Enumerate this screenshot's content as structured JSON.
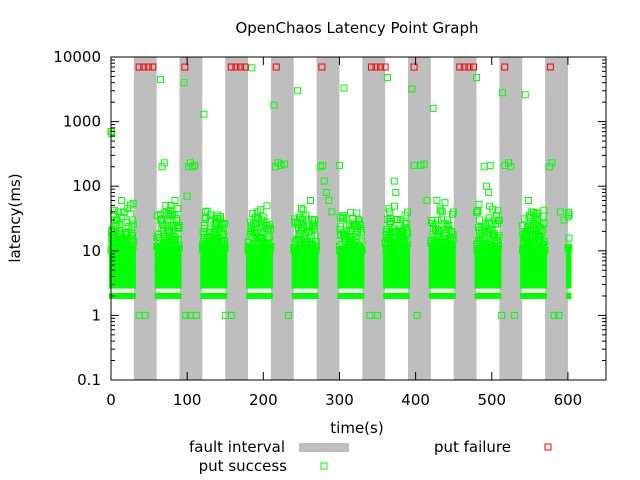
{
  "chart_data": {
    "type": "scatter",
    "title": "OpenChaos Latency Point Graph",
    "xlabel": "time(s)",
    "ylabel": "latency(ms)",
    "xlim": [
      0,
      650
    ],
    "ylim": [
      0.1,
      10000
    ],
    "yscale": "log",
    "grid": false,
    "legend_position": "bottom",
    "x_ticks": [
      0,
      100,
      200,
      300,
      400,
      500,
      600
    ],
    "x_tick_labels": [
      "0",
      "100",
      "200",
      "300",
      "400",
      "500",
      "600"
    ],
    "y_ticks": [
      0.1,
      1,
      10,
      100,
      1000,
      10000
    ],
    "y_tick_labels": [
      "0.1",
      "1",
      "10",
      "100",
      "1000",
      "10000"
    ],
    "fault_intervals": [
      [
        30,
        60
      ],
      [
        90,
        120
      ],
      [
        150,
        180
      ],
      [
        210,
        240
      ],
      [
        270,
        300
      ],
      [
        330,
        360
      ],
      [
        390,
        420
      ],
      [
        450,
        480
      ],
      [
        510,
        540
      ],
      [
        570,
        600
      ]
    ],
    "legend": [
      {
        "label": "fault interval",
        "color": "#bebebe",
        "marker": "rect"
      },
      {
        "label": "put success",
        "color": "#00ff00",
        "marker": "square"
      },
      {
        "label": "put failure",
        "color": "#ff0000",
        "marker": "square"
      }
    ],
    "series": [
      {
        "name": "put success",
        "color": "#00ff00",
        "bands": [
          [
            0,
            30
          ],
          [
            60,
            90
          ],
          [
            120,
            150
          ],
          [
            180,
            210
          ],
          [
            240,
            270
          ],
          [
            300,
            330
          ],
          [
            360,
            390
          ],
          [
            420,
            450
          ],
          [
            480,
            510
          ],
          [
            540,
            570
          ],
          [
            600,
            602
          ]
        ],
        "baseline_values": [
          2,
          3,
          4,
          5,
          6,
          8,
          10
        ],
        "points": [
          [
            0,
            700
          ],
          [
            1,
            650
          ],
          [
            3,
            15
          ],
          [
            6,
            25
          ],
          [
            10,
            40
          ],
          [
            14,
            60
          ],
          [
            22,
            45
          ],
          [
            28,
            30
          ],
          [
            37,
            1
          ],
          [
            45,
            1
          ],
          [
            65,
            4500
          ],
          [
            67,
            200
          ],
          [
            70,
            230
          ],
          [
            72,
            50
          ],
          [
            78,
            35
          ],
          [
            84,
            60
          ],
          [
            88,
            45
          ],
          [
            96,
            4000
          ],
          [
            98,
            1
          ],
          [
            104,
            1
          ],
          [
            100,
            70
          ],
          [
            102,
            200
          ],
          [
            104,
            230
          ],
          [
            107,
            200
          ],
          [
            110,
            210
          ],
          [
            112,
            1
          ],
          [
            122,
            1300
          ],
          [
            124,
            40
          ],
          [
            130,
            30
          ],
          [
            136,
            20
          ],
          [
            150,
            1
          ],
          [
            158,
            1
          ],
          [
            185,
            6800
          ],
          [
            192,
            40
          ],
          [
            198,
            30
          ],
          [
            205,
            25
          ],
          [
            214,
            1800
          ],
          [
            216,
            200
          ],
          [
            219,
            230
          ],
          [
            223,
            210
          ],
          [
            228,
            220
          ],
          [
            233,
            1
          ],
          [
            245,
            3000
          ],
          [
            250,
            45
          ],
          [
            256,
            35
          ],
          [
            262,
            60
          ],
          [
            275,
            200
          ],
          [
            278,
            210
          ],
          [
            280,
            120
          ],
          [
            283,
            80
          ],
          [
            286,
            60
          ],
          [
            290,
            40
          ],
          [
            306,
            3300
          ],
          [
            300,
            210
          ],
          [
            310,
            30
          ],
          [
            318,
            25
          ],
          [
            340,
            1
          ],
          [
            350,
            1
          ],
          [
            363,
            4800
          ],
          [
            366,
            40
          ],
          [
            372,
            120
          ],
          [
            374,
            80
          ],
          [
            380,
            30
          ],
          [
            395,
            3200
          ],
          [
            398,
            210
          ],
          [
            402,
            1
          ],
          [
            407,
            210
          ],
          [
            411,
            220
          ],
          [
            415,
            60
          ],
          [
            423,
            1600
          ],
          [
            428,
            60
          ],
          [
            435,
            40
          ],
          [
            442,
            30
          ],
          [
            447,
            20
          ],
          [
            480,
            4800
          ],
          [
            484,
            30
          ],
          [
            490,
            200
          ],
          [
            493,
            100
          ],
          [
            496,
            80
          ],
          [
            498,
            210
          ],
          [
            514,
            2800
          ],
          [
            513,
            1
          ],
          [
            517,
            210
          ],
          [
            522,
            230
          ],
          [
            525,
            200
          ],
          [
            530,
            1
          ],
          [
            544,
            2600
          ],
          [
            548,
            60
          ],
          [
            552,
            40
          ],
          [
            558,
            30
          ],
          [
            565,
            20
          ],
          [
            576,
            200
          ],
          [
            579,
            230
          ],
          [
            582,
            1
          ],
          [
            588,
            1
          ],
          [
            590,
            40
          ],
          [
            595,
            30
          ]
        ]
      },
      {
        "name": "put failure",
        "color": "#ff0000",
        "x": [
          37,
          43,
          49,
          55,
          97,
          158,
          164,
          170,
          176,
          217,
          277,
          342,
          348,
          354,
          360,
          398,
          458,
          464,
          470,
          476,
          517,
          577
        ],
        "y": [
          7000,
          7000,
          7000,
          7000,
          7000,
          7000,
          7000,
          7000,
          7000,
          7000,
          7000,
          7000,
          7000,
          7000,
          7000,
          7000,
          7000,
          7000,
          7000,
          7000,
          7000,
          7000
        ]
      }
    ]
  }
}
